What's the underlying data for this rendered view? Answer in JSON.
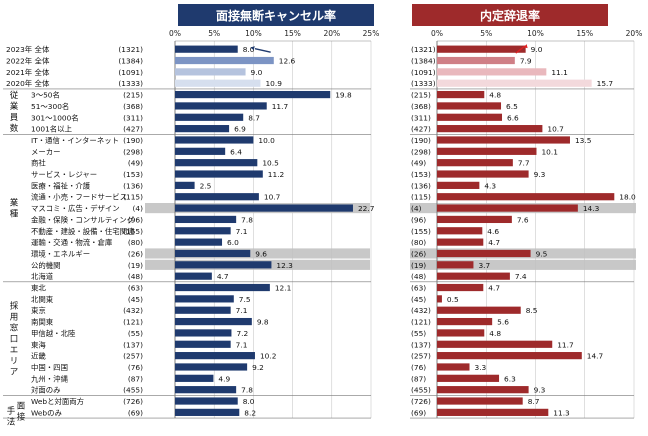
{
  "chart_data": [
    {
      "type": "bar",
      "orientation": "horizontal",
      "title": "面接無断キャンセル率",
      "xlim": [
        0,
        25
      ],
      "xticks": [
        "0%",
        "5%",
        "10%",
        "15%",
        "20%",
        "25%"
      ],
      "color": "#1f3a6e"
    },
    {
      "type": "bar",
      "orientation": "horizontal",
      "title": "内定辞退率",
      "xlim": [
        0,
        20
      ],
      "xticks": [
        "0%",
        "5%",
        "10%",
        "15%",
        "20%"
      ],
      "color": "#9e2a2b"
    }
  ],
  "groups": [
    {
      "label": "",
      "rows": [
        0,
        3
      ]
    },
    {
      "label": "従業員数",
      "rows": [
        4,
        7
      ]
    },
    {
      "label": "業種",
      "rows": [
        8,
        20
      ]
    },
    {
      "label": "採用窓口エリア",
      "rows": [
        21,
        30
      ]
    },
    {
      "label": "手法",
      "label_lines": [
        "手",
        "法"
      ],
      "label_lines2": [
        "面",
        "接"
      ],
      "rows": [
        31,
        33
      ]
    }
  ],
  "rows": [
    {
      "label": "2023年 全体",
      "n": "(1321)",
      "left": 8.0,
      "right": 9.0,
      "year_shade": 0
    },
    {
      "label": "2022年 全体",
      "n": "(1384)",
      "left": 12.6,
      "right": 7.9,
      "year_shade": 1
    },
    {
      "label": "2021年 全体",
      "n": "(1091)",
      "left": 9.0,
      "right": 11.1,
      "year_shade": 2
    },
    {
      "label": "2020年 全体",
      "n": "(1333)",
      "left": 10.9,
      "right": 15.7,
      "year_shade": 3
    },
    {
      "label": "3～50名",
      "n": "(215)",
      "left": 19.8,
      "right": 4.8
    },
    {
      "label": "51～300名",
      "n": "(368)",
      "left": 11.7,
      "right": 6.5
    },
    {
      "label": "301～1000名",
      "n": "(311)",
      "left": 8.7,
      "right": 6.6
    },
    {
      "label": "1001名以上",
      "n": "(427)",
      "left": 6.9,
      "right": 10.7
    },
    {
      "label": "IT・通信・インターネット",
      "n": "(190)",
      "left": 10.0,
      "right": 13.5
    },
    {
      "label": "メーカー",
      "n": "(298)",
      "left": 6.4,
      "right": 10.1
    },
    {
      "label": "商社",
      "n": "(49)",
      "left": 10.5,
      "right": 7.7
    },
    {
      "label": "サービス・レジャー",
      "n": "(153)",
      "left": 11.2,
      "right": 9.3
    },
    {
      "label": "医療・福祉・介護",
      "n": "(136)",
      "left": 2.5,
      "right": 4.3
    },
    {
      "label": "流通・小売・フードサービス",
      "n": "(115)",
      "left": 10.7,
      "right": 18.0
    },
    {
      "label": "マスコミ・広告・デザイン",
      "n": "(4)",
      "left": 22.7,
      "right": 14.3,
      "shaded": true
    },
    {
      "label": "金融・保険・コンサルティング",
      "n": "(96)",
      "left": 7.8,
      "right": 7.6
    },
    {
      "label": "不動産・建設・設備・住宅関連",
      "n": "(155)",
      "left": 7.1,
      "right": 4.6
    },
    {
      "label": "運輸・交通・物流・倉庫",
      "n": "(80)",
      "left": 6.0,
      "right": 4.7
    },
    {
      "label": "環境・エネルギー",
      "n": "(26)",
      "left": 9.6,
      "right": 9.5,
      "shaded": true
    },
    {
      "label": "公的機関",
      "n": "(19)",
      "left": 12.3,
      "right": 3.7,
      "shaded": true
    },
    {
      "label": "北海道",
      "n": "(48)",
      "left": 4.7,
      "right": 7.4
    },
    {
      "label": "東北",
      "n": "(63)",
      "left": 12.1,
      "right": 4.7
    },
    {
      "label": "北関東",
      "n": "(45)",
      "left": 7.5,
      "right": 0.5
    },
    {
      "label": "東京",
      "n": "(432)",
      "left": 7.1,
      "right": 8.5
    },
    {
      "label": "南関東",
      "n": "(121)",
      "left": 9.8,
      "right": 5.6
    },
    {
      "label": "甲信越・北陸",
      "n": "(55)",
      "left": 7.2,
      "right": 4.8
    },
    {
      "label": "東海",
      "n": "(137)",
      "left": 7.1,
      "right": 11.7
    },
    {
      "label": "近畿",
      "n": "(257)",
      "left": 10.2,
      "right": 14.7
    },
    {
      "label": "中国・四国",
      "n": "(76)",
      "left": 9.2,
      "right": 3.3
    },
    {
      "label": "九州・沖縄",
      "n": "(87)",
      "left": 4.9,
      "right": 6.3
    },
    {
      "label": "対面のみ",
      "n": "(455)",
      "left": 7.8,
      "right": 9.3
    },
    {
      "label": "Webと対面両方",
      "n": "(726)",
      "left": 8.0,
      "right": 8.7
    },
    {
      "label": "Webのみ",
      "n": "(69)",
      "left": 8.2,
      "right": 11.3
    }
  ],
  "colors": {
    "left_years": [
      "#1f3a6e",
      "#7c94c4",
      "#b5c3de",
      "#d6dfee"
    ],
    "right_years": [
      "#9e2a2b",
      "#cf7f86",
      "#e9b8bd",
      "#f3d9dc"
    ],
    "shade": "#c8c8c8",
    "arrow_left": "#1f3a6e",
    "arrow_right": "#e02020"
  }
}
